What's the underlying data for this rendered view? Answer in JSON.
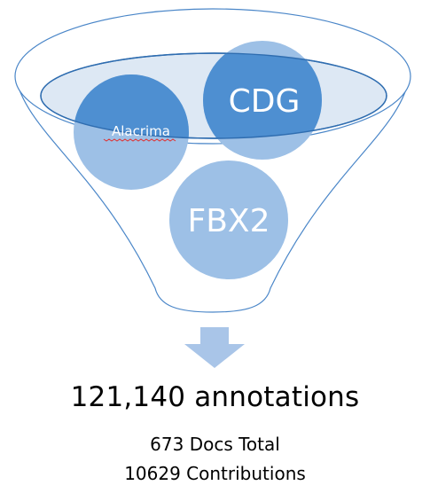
{
  "diagram": {
    "bubbles": [
      {
        "label": "Alacrima"
      },
      {
        "label": "CDG"
      },
      {
        "label": "FBX2"
      }
    ]
  },
  "summary": {
    "annotations": "121,140 annotations",
    "docs_total": "673 Docs Total",
    "contributions": "10629 Contributions"
  },
  "colors": {
    "funnel_outline": "#4a86c8",
    "funnel_fill_top": "#dde8f4",
    "bubble_dark": "#4e8fd1",
    "bubble_light": "#9dc0e6",
    "arrow": "#a9c5e8",
    "text": "#000000"
  }
}
